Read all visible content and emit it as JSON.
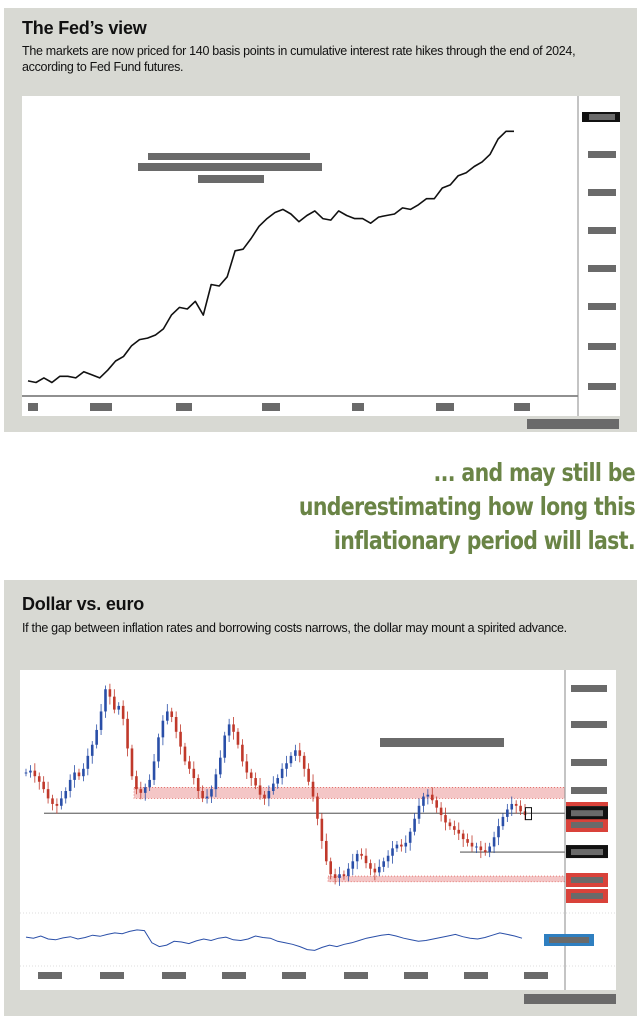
{
  "fed_panel": {
    "title": "The Fed’s view",
    "subtitle": "The markets are now priced for 140 basis points in cumulative interest rate hikes through the end of 2024, according to Fed Fund futures."
  },
  "pullquote": {
    "lines": [
      "... and may still be",
      "underestimating how long this",
      "inflationary period will last."
    ]
  },
  "dollar_panel": {
    "title": "Dollar vs. euro",
    "subtitle": "If the gap between inflation rates and borrowing costs narrows, the dollar may mount a spirited advance."
  },
  "colors": {
    "line": "#111111",
    "resistance_band": "#f4c6c6",
    "band_highlight": "#d9423a",
    "current_price": "#111111",
    "candle_up": "#2a4fa8",
    "candle_down": "#c0392b",
    "oscillator": "#2a4fa8",
    "oscillator_marker": "#2f7fc0",
    "redacted": "#6a6a6a"
  },
  "chart_data": [
    {
      "type": "line",
      "title": "The Fed’s view",
      "x_index": [
        0,
        1,
        2,
        3,
        4,
        5,
        6,
        7,
        8,
        9,
        10,
        11,
        12,
        13,
        14,
        15,
        16,
        17,
        18,
        19,
        20,
        21,
        22,
        23,
        24,
        25,
        26,
        27,
        28,
        29,
        30,
        31,
        32,
        33,
        34,
        35,
        36,
        37,
        38,
        39,
        40,
        41,
        42,
        43,
        44,
        45,
        46,
        47,
        48,
        49,
        50,
        51,
        52,
        53,
        54,
        55,
        56,
        57,
        58,
        59,
        60,
        61
      ],
      "values": [
        0.02,
        0.01,
        0.04,
        0.01,
        0.05,
        0.05,
        0.04,
        0.08,
        0.06,
        0.04,
        0.09,
        0.15,
        0.18,
        0.25,
        0.29,
        0.3,
        0.32,
        0.36,
        0.45,
        0.5,
        0.49,
        0.54,
        0.45,
        0.65,
        0.64,
        0.7,
        0.87,
        0.88,
        0.95,
        1.03,
        1.08,
        1.12,
        1.14,
        1.11,
        1.06,
        1.1,
        1.13,
        1.08,
        1.07,
        1.13,
        1.1,
        1.08,
        1.08,
        1.05,
        1.09,
        1.1,
        1.11,
        1.15,
        1.14,
        1.17,
        1.21,
        1.21,
        1.28,
        1.3,
        1.36,
        1.38,
        1.42,
        1.45,
        1.5,
        1.6,
        1.65,
        1.65
      ],
      "ylim": [
        0,
        1.75
      ],
      "grid": false,
      "legend": "none"
    },
    {
      "type": "candlestick",
      "title": "Dollar vs. euro",
      "closes": [
        1.38,
        1.382,
        1.376,
        1.37,
        1.362,
        1.352,
        1.346,
        1.344,
        1.352,
        1.36,
        1.372,
        1.38,
        1.376,
        1.384,
        1.398,
        1.41,
        1.426,
        1.446,
        1.47,
        1.462,
        1.448,
        1.452,
        1.438,
        1.406,
        1.376,
        1.362,
        1.358,
        1.364,
        1.372,
        1.392,
        1.418,
        1.436,
        1.446,
        1.44,
        1.424,
        1.408,
        1.392,
        1.384,
        1.374,
        1.36,
        1.352,
        1.354,
        1.362,
        1.378,
        1.396,
        1.42,
        1.432,
        1.424,
        1.41,
        1.392,
        1.38,
        1.374,
        1.366,
        1.356,
        1.352,
        1.36,
        1.368,
        1.374,
        1.384,
        1.39,
        1.398,
        1.404,
        1.398,
        1.384,
        1.37,
        1.354,
        1.33,
        1.306,
        1.284,
        1.27,
        1.266,
        1.27,
        1.268,
        1.276,
        1.284,
        1.292,
        1.29,
        1.282,
        1.276,
        1.272,
        1.278,
        1.284,
        1.29,
        1.298,
        1.302,
        1.3,
        1.304,
        1.316,
        1.33,
        1.344,
        1.354,
        1.356,
        1.35,
        1.342,
        1.334,
        1.326,
        1.322,
        1.318,
        1.314,
        1.308,
        1.304,
        1.3,
        1.3,
        1.296,
        1.294,
        1.3,
        1.31,
        1.322,
        1.332,
        1.34,
        1.346,
        1.344,
        1.338,
        1.334
      ],
      "resistance_band": [
        1.352,
        1.364
      ],
      "support_band": [
        1.264,
        1.268
      ],
      "reference_lines": [
        1.336,
        1.294
      ],
      "ylim": [
        1.24,
        1.48
      ],
      "oscillator": [
        0.55,
        0.52,
        0.58,
        0.5,
        0.48,
        0.53,
        0.56,
        0.5,
        0.54,
        0.6,
        0.57,
        0.62,
        0.66,
        0.64,
        0.7,
        0.74,
        0.72,
        0.4,
        0.3,
        0.34,
        0.44,
        0.42,
        0.38,
        0.45,
        0.5,
        0.46,
        0.52,
        0.55,
        0.48,
        0.46,
        0.5,
        0.58,
        0.54,
        0.52,
        0.44,
        0.4,
        0.36,
        0.3,
        0.22,
        0.2,
        0.28,
        0.34,
        0.3,
        0.36,
        0.4,
        0.46,
        0.52,
        0.56,
        0.6,
        0.62,
        0.58,
        0.52,
        0.48,
        0.44,
        0.46,
        0.5,
        0.54,
        0.58,
        0.62,
        0.56,
        0.52,
        0.5,
        0.54,
        0.6,
        0.66,
        0.62,
        0.58,
        0.52
      ],
      "grid": false,
      "legend": "none"
    }
  ]
}
